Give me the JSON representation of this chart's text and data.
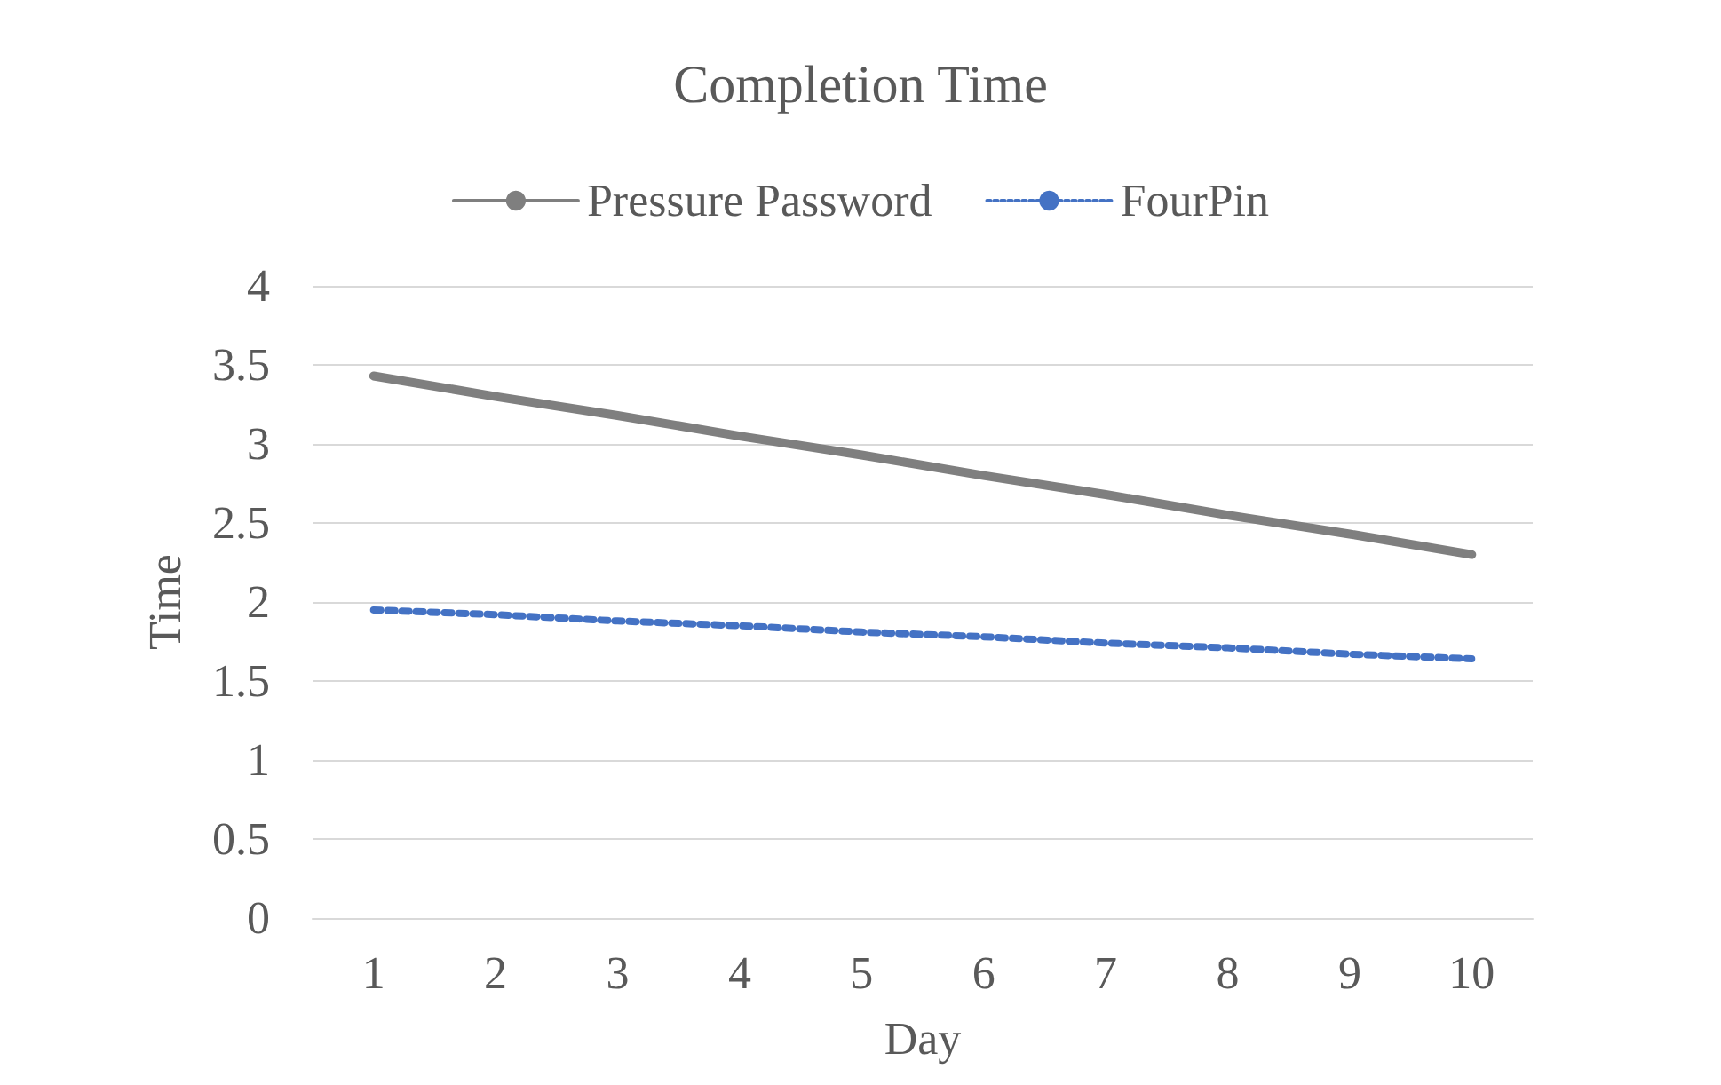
{
  "chart_data": {
    "type": "line",
    "title": "Completion Time",
    "xlabel": "Day",
    "ylabel": "Time",
    "categories": [
      "1",
      "2",
      "3",
      "4",
      "5",
      "6",
      "7",
      "8",
      "9",
      "10"
    ],
    "series": [
      {
        "name": "Pressure Password",
        "color": "#7f7f7f",
        "line_style": "solid",
        "values": [
          3.43,
          3.3,
          3.18,
          3.05,
          2.93,
          2.8,
          2.68,
          2.55,
          2.43,
          2.3
        ]
      },
      {
        "name": "FourPin",
        "color": "#4472c4",
        "line_style": "dotted",
        "values": [
          1.95,
          1.92,
          1.88,
          1.85,
          1.81,
          1.78,
          1.74,
          1.71,
          1.67,
          1.64
        ]
      }
    ],
    "ylim": [
      0,
      4
    ],
    "yticks": [
      0,
      0.5,
      1,
      1.5,
      2,
      2.5,
      3,
      3.5,
      4
    ],
    "grid": "y",
    "legend": "top",
    "marker": "none"
  }
}
